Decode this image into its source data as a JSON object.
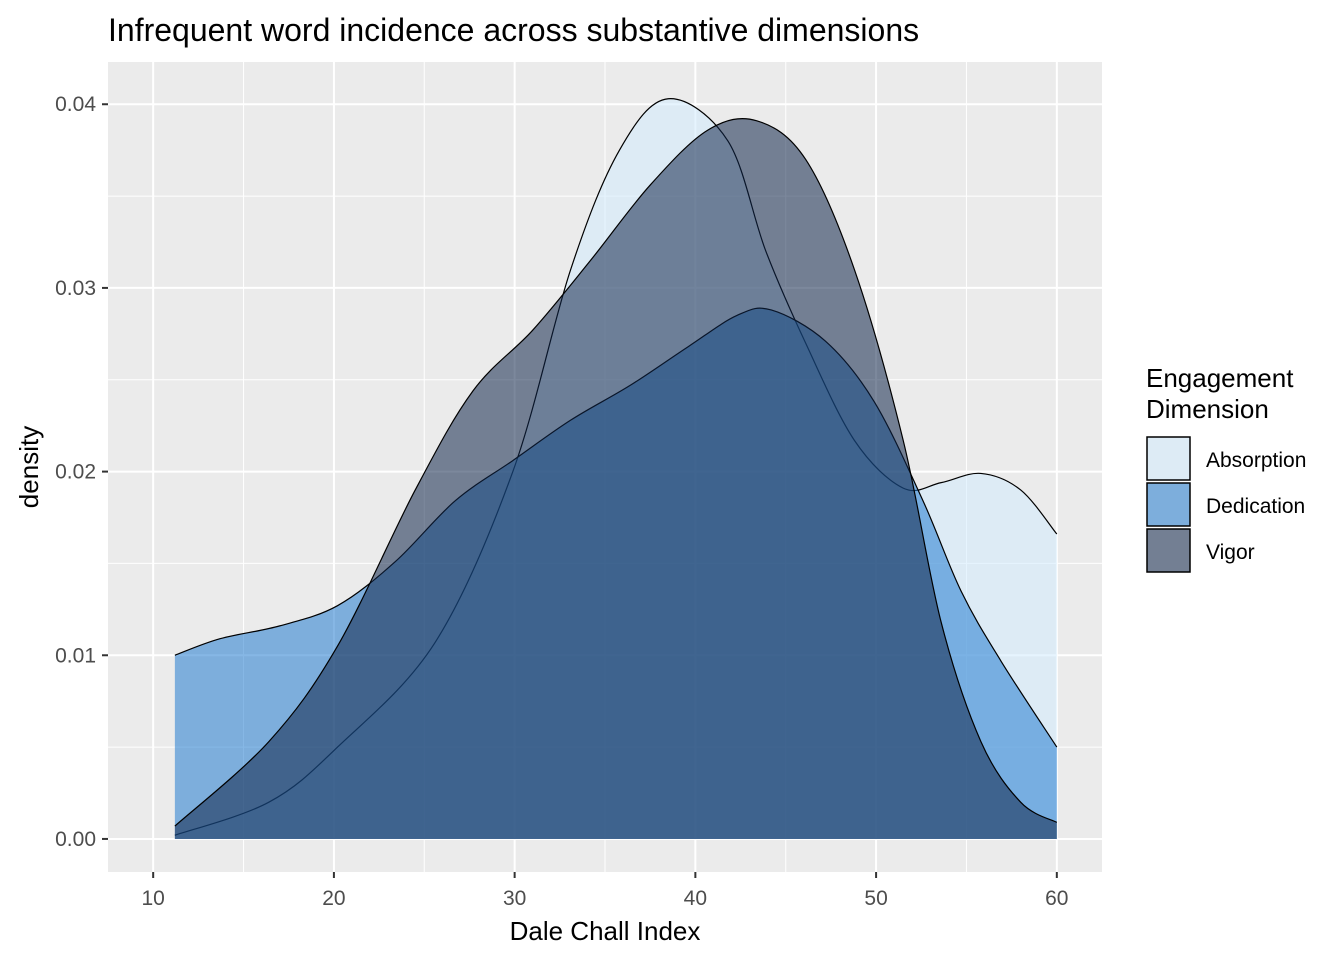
{
  "chart_data": {
    "type": "area",
    "title": "Infrequent word incidence across substantive dimensions",
    "xlabel": "Dale Chall Index",
    "ylabel": "density",
    "xlim": [
      7.5,
      62.5
    ],
    "ylim": [
      -0.0018,
      0.0423
    ],
    "x_ticks": [
      10,
      20,
      30,
      40,
      50,
      60
    ],
    "y_ticks": [
      0.0,
      0.01,
      0.02,
      0.03,
      0.04
    ],
    "x_tick_labels": [
      "10",
      "20",
      "30",
      "40",
      "50",
      "60"
    ],
    "y_tick_labels": [
      "0.00",
      "0.01",
      "0.02",
      "0.03",
      "0.04"
    ],
    "grid": true,
    "legend": {
      "title_lines": [
        "Engagement",
        "Dimension"
      ],
      "placement": "right"
    },
    "series": [
      {
        "name": "Absorption",
        "color": "#d1ebfd",
        "points": [
          [
            11.2,
            0.0002
          ],
          [
            16.4,
            0.002
          ],
          [
            20.2,
            0.005
          ],
          [
            25.6,
            0.0107
          ],
          [
            29.9,
            0.02
          ],
          [
            33.1,
            0.031
          ],
          [
            35.8,
            0.0375
          ],
          [
            38.5,
            0.0403
          ],
          [
            41.8,
            0.038
          ],
          [
            43.9,
            0.032
          ],
          [
            46.1,
            0.027
          ],
          [
            48.8,
            0.0217
          ],
          [
            51.5,
            0.0191
          ],
          [
            53.6,
            0.0194
          ],
          [
            55.8,
            0.0199
          ],
          [
            58,
            0.019
          ],
          [
            60,
            0.0166
          ]
        ]
      },
      {
        "name": "Dedication",
        "color": "#237cd0",
        "points": [
          [
            11.2,
            0.01
          ],
          [
            13.7,
            0.0109
          ],
          [
            17,
            0.0116
          ],
          [
            20.2,
            0.0127
          ],
          [
            23.4,
            0.0151
          ],
          [
            26.7,
            0.0184
          ],
          [
            29.9,
            0.0206
          ],
          [
            33.1,
            0.0228
          ],
          [
            36.4,
            0.0247
          ],
          [
            39.6,
            0.0268
          ],
          [
            42.3,
            0.0285
          ],
          [
            44.2,
            0.0288
          ],
          [
            47.2,
            0.0271
          ],
          [
            49.9,
            0.0238
          ],
          [
            52.6,
            0.0184
          ],
          [
            54.7,
            0.0135
          ],
          [
            56.9,
            0.0097
          ],
          [
            60,
            0.005
          ]
        ]
      },
      {
        "name": "Vigor",
        "color": "#11274b",
        "points": [
          [
            11.2,
            0.0007
          ],
          [
            16.4,
            0.0053
          ],
          [
            20.2,
            0.0105
          ],
          [
            24.5,
            0.019
          ],
          [
            27.7,
            0.0244
          ],
          [
            31,
            0.0277
          ],
          [
            34.2,
            0.0315
          ],
          [
            37.5,
            0.0356
          ],
          [
            40.7,
            0.0386
          ],
          [
            43.4,
            0.0391
          ],
          [
            46.1,
            0.037
          ],
          [
            48.8,
            0.031
          ],
          [
            51.5,
            0.0217
          ],
          [
            53.6,
            0.0118
          ],
          [
            55.8,
            0.0053
          ],
          [
            58,
            0.002
          ],
          [
            60,
            0.0009
          ]
        ]
      }
    ]
  }
}
